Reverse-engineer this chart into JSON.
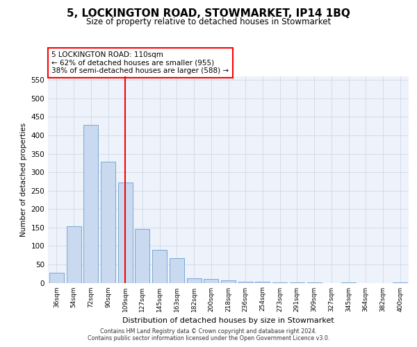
{
  "title": "5, LOCKINGTON ROAD, STOWMARKET, IP14 1BQ",
  "subtitle": "Size of property relative to detached houses in Stowmarket",
  "xlabel": "Distribution of detached houses by size in Stowmarket",
  "ylabel": "Number of detached properties",
  "categories": [
    "36sqm",
    "54sqm",
    "72sqm",
    "90sqm",
    "109sqm",
    "127sqm",
    "145sqm",
    "163sqm",
    "182sqm",
    "200sqm",
    "218sqm",
    "236sqm",
    "254sqm",
    "273sqm",
    "291sqm",
    "309sqm",
    "327sqm",
    "345sqm",
    "364sqm",
    "382sqm",
    "400sqm"
  ],
  "values": [
    28,
    153,
    428,
    328,
    272,
    145,
    89,
    67,
    12,
    10,
    7,
    2,
    3,
    1,
    1,
    1,
    0,
    1,
    0,
    0,
    1
  ],
  "bar_color": "#c8d9f0",
  "bar_edge_color": "#7aa8d4",
  "vline_index": 4,
  "annotation_text": "5 LOCKINGTON ROAD: 110sqm\n← 62% of detached houses are smaller (955)\n38% of semi-detached houses are larger (588) →",
  "annotation_box_color": "white",
  "annotation_box_edge_color": "red",
  "vline_color": "red",
  "grid_color": "#d0d8e8",
  "background_color": "#eef2fa",
  "ylim": [
    0,
    560
  ],
  "yticks": [
    0,
    50,
    100,
    150,
    200,
    250,
    300,
    350,
    400,
    450,
    500,
    550
  ],
  "footer_line1": "Contains HM Land Registry data © Crown copyright and database right 2024.",
  "footer_line2": "Contains public sector information licensed under the Open Government Licence v3.0."
}
